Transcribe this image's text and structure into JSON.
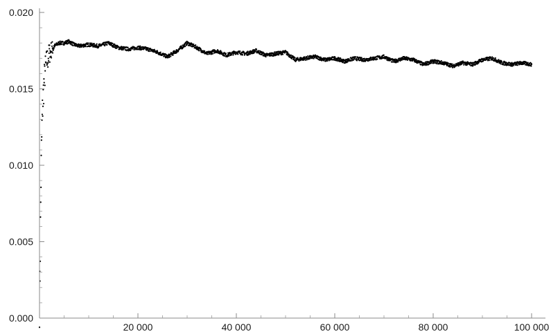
{
  "chart_data": {
    "type": "scatter",
    "title": "",
    "xlabel": "",
    "ylabel": "",
    "xlim": [
      0,
      100000
    ],
    "ylim": [
      0,
      0.02
    ],
    "x_ticks": [
      20000,
      40000,
      60000,
      80000,
      100000
    ],
    "x_tick_labels": [
      "20 000",
      "40 000",
      "60 000",
      "80 000",
      "100 000"
    ],
    "y_ticks": [
      0,
      0.005,
      0.01,
      0.015,
      0.02
    ],
    "y_tick_labels": [
      "0.000",
      "0.005",
      "0.010",
      "0.015",
      "0.020"
    ],
    "grid": false,
    "legend": "none",
    "marker_color": "#000000",
    "series": [
      {
        "x": [
          0,
          100,
          200,
          300,
          400,
          500,
          600,
          800,
          1000,
          1200,
          1500,
          1800,
          2000,
          2500,
          3000,
          3500,
          4000,
          5000,
          6000,
          7000,
          8000,
          10000,
          12000,
          14000,
          16000,
          18000,
          20000,
          22000,
          24000,
          26000,
          28000,
          30000,
          32000,
          34000,
          36000,
          38000,
          40000,
          42000,
          44000,
          46000,
          48000,
          50000,
          52000,
          54000,
          56000,
          58000,
          60000,
          62000,
          64000,
          66000,
          68000,
          70000,
          72000,
          74000,
          76000,
          78000,
          80000,
          82000,
          84000,
          86000,
          88000,
          90000,
          92000,
          94000,
          96000,
          98000,
          100000
        ],
        "y": [
          0.0008,
          0.003,
          0.006,
          0.009,
          0.011,
          0.0125,
          0.0135,
          0.0148,
          0.0157,
          0.0163,
          0.0168,
          0.0171,
          0.0173,
          0.0176,
          0.0178,
          0.0179,
          0.018,
          0.018,
          0.0181,
          0.0179,
          0.0178,
          0.0179,
          0.0178,
          0.018,
          0.0177,
          0.0176,
          0.0177,
          0.0176,
          0.0174,
          0.0171,
          0.0175,
          0.018,
          0.0177,
          0.0173,
          0.0175,
          0.0172,
          0.0174,
          0.0173,
          0.0175,
          0.0172,
          0.0173,
          0.0174,
          0.0169,
          0.017,
          0.0171,
          0.0169,
          0.017,
          0.0168,
          0.017,
          0.0169,
          0.017,
          0.0171,
          0.0168,
          0.017,
          0.0169,
          0.0166,
          0.0168,
          0.0167,
          0.0165,
          0.0167,
          0.0166,
          0.0169,
          0.017,
          0.0167,
          0.0166,
          0.0167,
          0.0166
        ]
      }
    ]
  }
}
